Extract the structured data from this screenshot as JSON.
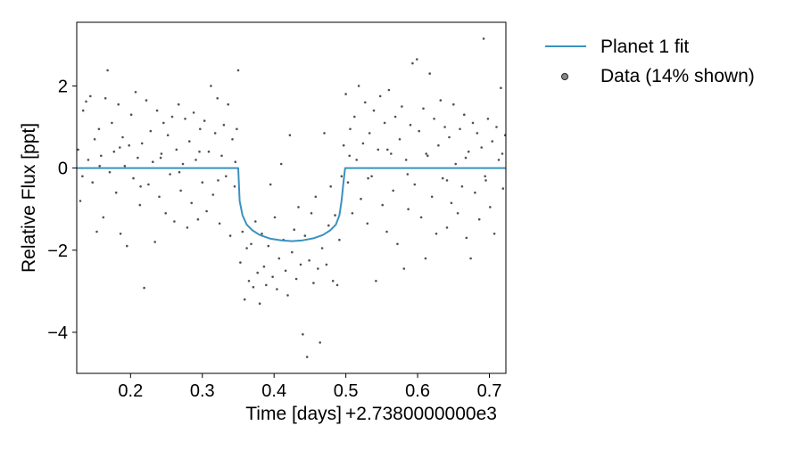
{
  "chart_data": {
    "type": "scatter",
    "title": "",
    "xlabel": "Time [days]",
    "ylabel": "Relative Flux [ppt]",
    "x_offset_label": "+2.7380000000e3",
    "xlim": [
      0.125,
      0.723
    ],
    "ylim": [
      -5.0,
      3.55
    ],
    "x_ticks": [
      0.2,
      0.3,
      0.4,
      0.5,
      0.6,
      0.7
    ],
    "x_tick_labels": [
      "0.2",
      "0.3",
      "0.4",
      "0.5",
      "0.6",
      "0.7"
    ],
    "y_ticks": [
      2,
      0,
      -2,
      -4
    ],
    "y_tick_labels": [
      "2",
      "0",
      "−2",
      "−4"
    ],
    "grid": false,
    "legend_position": "outside-right-top",
    "colors": {
      "fit": "#3a91c0",
      "data": "#333333"
    },
    "series": [
      {
        "name": "Planet 1 fit",
        "kind": "line",
        "x": [
          0.125,
          0.35,
          0.352,
          0.356,
          0.362,
          0.37,
          0.38,
          0.395,
          0.41,
          0.425,
          0.44,
          0.455,
          0.468,
          0.478,
          0.486,
          0.491,
          0.494,
          0.497,
          0.499,
          0.723
        ],
        "y": [
          0.0,
          0.0,
          -0.8,
          -1.15,
          -1.38,
          -1.52,
          -1.63,
          -1.72,
          -1.76,
          -1.78,
          -1.76,
          -1.71,
          -1.63,
          -1.52,
          -1.38,
          -1.15,
          -0.8,
          -0.3,
          0.0,
          0.0
        ]
      },
      {
        "name": "Data (14% shown)",
        "kind": "scatter",
        "points": [
          [
            0.127,
            0.45
          ],
          [
            0.13,
            -0.8
          ],
          [
            0.134,
            1.4
          ],
          [
            0.138,
            1.62
          ],
          [
            0.141,
            0.2
          ],
          [
            0.144,
            1.75
          ],
          [
            0.147,
            -0.35
          ],
          [
            0.15,
            0.7
          ],
          [
            0.153,
            -1.55
          ],
          [
            0.156,
            0.95
          ],
          [
            0.159,
            0.3
          ],
          [
            0.162,
            -1.2
          ],
          [
            0.165,
            1.7
          ],
          [
            0.168,
            2.38
          ],
          [
            0.171,
            -0.1
          ],
          [
            0.174,
            1.1
          ],
          [
            0.177,
            0.4
          ],
          [
            0.18,
            -0.6
          ],
          [
            0.183,
            1.55
          ],
          [
            0.186,
            -1.6
          ],
          [
            0.189,
            0.75
          ],
          [
            0.192,
            0.05
          ],
          [
            0.195,
            -1.9
          ],
          [
            0.198,
            0.55
          ],
          [
            0.201,
            1.3
          ],
          [
            0.204,
            -0.25
          ],
          [
            0.207,
            1.85
          ],
          [
            0.21,
            0.25
          ],
          [
            0.213,
            -0.9
          ],
          [
            0.216,
            0.6
          ],
          [
            0.219,
            -2.92
          ],
          [
            0.222,
            1.65
          ],
          [
            0.225,
            -0.4
          ],
          [
            0.228,
            0.9
          ],
          [
            0.231,
            0.15
          ],
          [
            0.234,
            -1.8
          ],
          [
            0.237,
            1.4
          ],
          [
            0.24,
            -0.7
          ],
          [
            0.243,
            0.35
          ],
          [
            0.246,
            1.1
          ],
          [
            0.249,
            -1.1
          ],
          [
            0.252,
            0.8
          ],
          [
            0.255,
            -0.15
          ],
          [
            0.258,
            1.25
          ],
          [
            0.261,
            -1.3
          ],
          [
            0.264,
            0.45
          ],
          [
            0.267,
            1.55
          ],
          [
            0.27,
            -0.55
          ],
          [
            0.273,
            0.1
          ],
          [
            0.276,
            1.2
          ],
          [
            0.279,
            -1.45
          ],
          [
            0.282,
            0.65
          ],
          [
            0.285,
            -0.85
          ],
          [
            0.288,
            1.35
          ],
          [
            0.291,
            0.2
          ],
          [
            0.294,
            -1.25
          ],
          [
            0.297,
            0.95
          ],
          [
            0.3,
            -0.35
          ],
          [
            0.303,
            1.15
          ],
          [
            0.306,
            -1.05
          ],
          [
            0.309,
            0.4
          ],
          [
            0.312,
            2.0
          ],
          [
            0.315,
            -0.65
          ],
          [
            0.318,
            0.85
          ],
          [
            0.321,
            1.7
          ],
          [
            0.324,
            -1.35
          ],
          [
            0.327,
            0.3
          ],
          [
            0.33,
            1.05
          ],
          [
            0.333,
            -0.2
          ],
          [
            0.336,
            1.55
          ],
          [
            0.339,
            -1.65
          ],
          [
            0.342,
            0.7
          ],
          [
            0.345,
            -0.45
          ],
          [
            0.348,
            0.95
          ],
          [
            0.35,
            2.38
          ],
          [
            0.353,
            -2.3
          ],
          [
            0.356,
            -1.55
          ],
          [
            0.359,
            -3.2
          ],
          [
            0.362,
            -1.95
          ],
          [
            0.365,
            -2.75
          ],
          [
            0.368,
            -1.85
          ],
          [
            0.371,
            -2.9
          ],
          [
            0.374,
            -1.3
          ],
          [
            0.377,
            -2.55
          ],
          [
            0.38,
            -3.3
          ],
          [
            0.383,
            -1.6
          ],
          [
            0.386,
            -2.4
          ],
          [
            0.389,
            -2.85
          ],
          [
            0.392,
            -1.9
          ],
          [
            0.395,
            -0.4
          ],
          [
            0.398,
            -2.65
          ],
          [
            0.401,
            -1.2
          ],
          [
            0.404,
            -2.95
          ],
          [
            0.407,
            -2.2
          ],
          [
            0.41,
            0.1
          ],
          [
            0.413,
            -1.75
          ],
          [
            0.416,
            -2.5
          ],
          [
            0.419,
            -3.1
          ],
          [
            0.422,
            0.8
          ],
          [
            0.425,
            -2.05
          ],
          [
            0.428,
            -1.5
          ],
          [
            0.431,
            -2.7
          ],
          [
            0.434,
            -0.95
          ],
          [
            0.437,
            -2.35
          ],
          [
            0.44,
            -4.05
          ],
          [
            0.443,
            -1.65
          ],
          [
            0.446,
            -4.6
          ],
          [
            0.449,
            -2.25
          ],
          [
            0.452,
            -1.1
          ],
          [
            0.455,
            -2.8
          ],
          [
            0.458,
            -0.7
          ],
          [
            0.461,
            -2.45
          ],
          [
            0.464,
            -4.25
          ],
          [
            0.467,
            -1.95
          ],
          [
            0.47,
            0.85
          ],
          [
            0.473,
            -2.35
          ],
          [
            0.476,
            -1.4
          ],
          [
            0.479,
            -0.45
          ],
          [
            0.482,
            -2.75
          ],
          [
            0.485,
            -1.15
          ],
          [
            0.488,
            -2.85
          ],
          [
            0.491,
            -1.75
          ],
          [
            0.494,
            -0.2
          ],
          [
            0.497,
            0.55
          ],
          [
            0.5,
            1.8
          ],
          [
            0.503,
            -0.35
          ],
          [
            0.506,
            0.95
          ],
          [
            0.509,
            -1.1
          ],
          [
            0.512,
            1.25
          ],
          [
            0.515,
            0.2
          ],
          [
            0.518,
            2.0
          ],
          [
            0.521,
            -0.75
          ],
          [
            0.524,
            0.6
          ],
          [
            0.527,
            1.6
          ],
          [
            0.53,
            -1.35
          ],
          [
            0.533,
            0.85
          ],
          [
            0.536,
            -0.2
          ],
          [
            0.539,
            1.4
          ],
          [
            0.542,
            -2.75
          ],
          [
            0.545,
            0.45
          ],
          [
            0.548,
            1.75
          ],
          [
            0.551,
            -0.9
          ],
          [
            0.554,
            1.1
          ],
          [
            0.557,
            -1.55
          ],
          [
            0.56,
            1.9
          ],
          [
            0.563,
            0.35
          ],
          [
            0.566,
            -0.55
          ],
          [
            0.569,
            1.25
          ],
          [
            0.572,
            -1.85
          ],
          [
            0.575,
            0.7
          ],
          [
            0.578,
            1.5
          ],
          [
            0.581,
            -2.45
          ],
          [
            0.584,
            0.2
          ],
          [
            0.587,
            -1.0
          ],
          [
            0.59,
            1.05
          ],
          [
            0.593,
            2.55
          ],
          [
            0.596,
            -0.4
          ],
          [
            0.599,
            2.65
          ],
          [
            0.602,
            0.9
          ],
          [
            0.605,
            -1.2
          ],
          [
            0.608,
            1.45
          ],
          [
            0.611,
            -2.2
          ],
          [
            0.614,
            0.3
          ],
          [
            0.617,
            2.3
          ],
          [
            0.62,
            -0.7
          ],
          [
            0.623,
            1.2
          ],
          [
            0.626,
            -1.6
          ],
          [
            0.629,
            0.55
          ],
          [
            0.632,
            1.65
          ],
          [
            0.635,
            -0.25
          ],
          [
            0.638,
            1.0
          ],
          [
            0.641,
            -1.45
          ],
          [
            0.644,
            0.75
          ],
          [
            0.647,
            -0.85
          ],
          [
            0.65,
            1.55
          ],
          [
            0.653,
            0.1
          ],
          [
            0.656,
            -1.1
          ],
          [
            0.659,
            0.95
          ],
          [
            0.662,
            -0.45
          ],
          [
            0.665,
            1.3
          ],
          [
            0.668,
            -1.7
          ],
          [
            0.671,
            0.4
          ],
          [
            0.674,
            -2.2
          ],
          [
            0.677,
            1.1
          ],
          [
            0.68,
            -0.6
          ],
          [
            0.683,
            0.85
          ],
          [
            0.686,
            -1.25
          ],
          [
            0.689,
            0.5
          ],
          [
            0.692,
            3.15
          ],
          [
            0.695,
            -0.3
          ],
          [
            0.698,
            1.2
          ],
          [
            0.701,
            -0.95
          ],
          [
            0.704,
            0.65
          ],
          [
            0.707,
            -1.6
          ],
          [
            0.71,
            1.0
          ],
          [
            0.713,
            0.2
          ],
          [
            0.716,
            1.95
          ],
          [
            0.719,
            -0.5
          ],
          [
            0.722,
            0.8
          ],
          [
            0.133,
            -0.2
          ],
          [
            0.157,
            0.05
          ],
          [
            0.185,
            0.5
          ],
          [
            0.214,
            -0.45
          ],
          [
            0.242,
            0.25
          ],
          [
            0.268,
            -0.1
          ],
          [
            0.296,
            0.4
          ],
          [
            0.322,
            -0.3
          ],
          [
            0.346,
            0.15
          ],
          [
            0.505,
            0.3
          ],
          [
            0.531,
            -0.25
          ],
          [
            0.558,
            0.45
          ],
          [
            0.586,
            -0.15
          ],
          [
            0.612,
            0.35
          ],
          [
            0.641,
            -0.3
          ],
          [
            0.667,
            0.25
          ],
          [
            0.694,
            -0.2
          ],
          [
            0.718,
            0.35
          ]
        ]
      }
    ]
  }
}
